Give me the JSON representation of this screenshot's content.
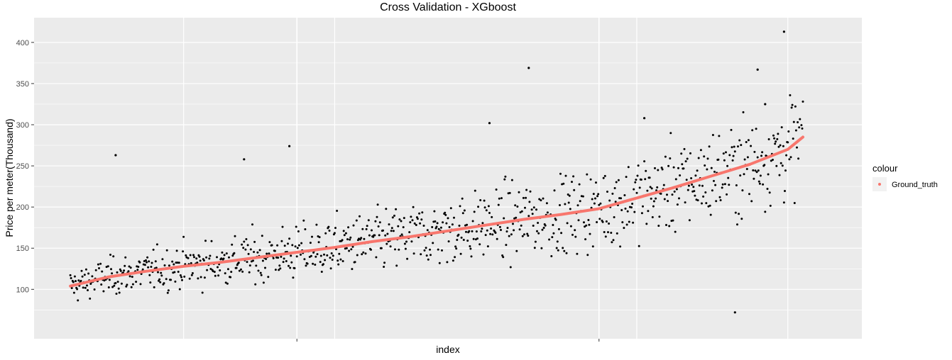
{
  "chart_data": {
    "type": "scatter",
    "title": "Cross Validation - XGboost",
    "xlabel": "index",
    "ylabel": "Price per meter(Thousand)",
    "xlim": [
      -48,
      1048
    ],
    "ylim": [
      40,
      430
    ],
    "yticks": [
      100,
      150,
      200,
      250,
      300,
      350,
      400
    ],
    "xticks": [
      300,
      700
    ],
    "xgrid_major": [
      150,
      350,
      750,
      950
    ],
    "grid": true,
    "legend": {
      "title": "colour",
      "placement": "right",
      "entries": [
        {
          "label": "Ground_truth",
          "color": "#f8766d"
        }
      ]
    },
    "series": [
      {
        "name": "Ground_truth",
        "kind": "line",
        "color": "#f8766d",
        "x": [
          0,
          50,
          100,
          150,
          200,
          250,
          300,
          350,
          400,
          450,
          500,
          550,
          600,
          650,
          700,
          750,
          800,
          850,
          900,
          950,
          970
        ],
        "y": [
          104,
          115,
          122,
          128,
          133,
          139,
          145,
          151,
          158,
          164,
          171,
          178,
          185,
          191,
          198,
          211,
          224,
          238,
          252,
          270,
          285
        ]
      },
      {
        "kind": "points",
        "color": "#000000",
        "x": [
          60,
          230,
          290,
          555,
          607,
          760,
          880,
          920,
          945,
          910
        ],
        "y": [
          263,
          258,
          274,
          302,
          369,
          308,
          72,
          325,
          413,
          367
        ]
      }
    ]
  }
}
